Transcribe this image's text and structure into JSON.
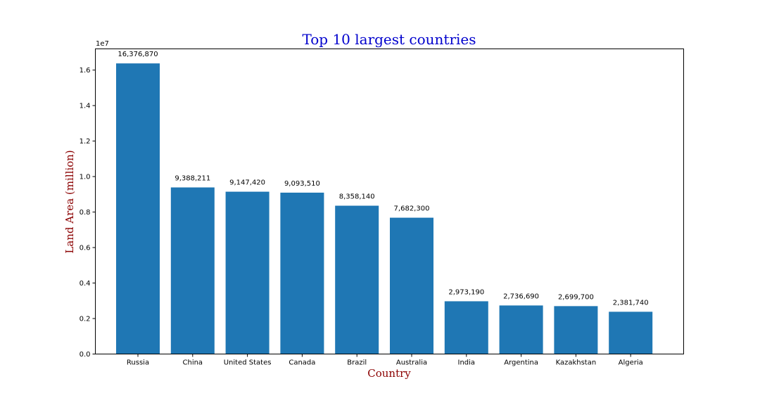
{
  "chart_data": {
    "type": "bar",
    "title": "Top 10 largest countries",
    "xlabel": "Country",
    "ylabel": "Land Area (million)",
    "y_offset_label": "1e7",
    "categories": [
      "Russia",
      "China",
      "United States",
      "Canada",
      "Brazil",
      "Australia",
      "India",
      "Argentina",
      "Kazakhstan",
      "Algeria"
    ],
    "values": [
      16376870,
      9388211,
      9147420,
      9093510,
      8358140,
      7682300,
      2973190,
      2736690,
      2699700,
      2381740
    ],
    "value_labels": [
      "16,376,870",
      "9,388,211",
      "9,147,420",
      "9,093,510",
      "8,358,140",
      "7,682,300",
      "2,973,190",
      "2,736,690",
      "2,699,700",
      "2,381,740"
    ],
    "yticks": [
      0,
      2000000,
      4000000,
      6000000,
      8000000,
      10000000,
      12000000,
      14000000,
      16000000
    ],
    "ytick_labels": [
      "0.0",
      "0.2",
      "0.4",
      "0.6",
      "0.8",
      "1.0",
      "1.2",
      "1.4",
      "1.6"
    ],
    "ylim": [
      0,
      17195713
    ],
    "grid": false,
    "colors": {
      "bar": "#1f77b4",
      "title": "#0000cd",
      "axis_label": "#8b0000"
    }
  }
}
